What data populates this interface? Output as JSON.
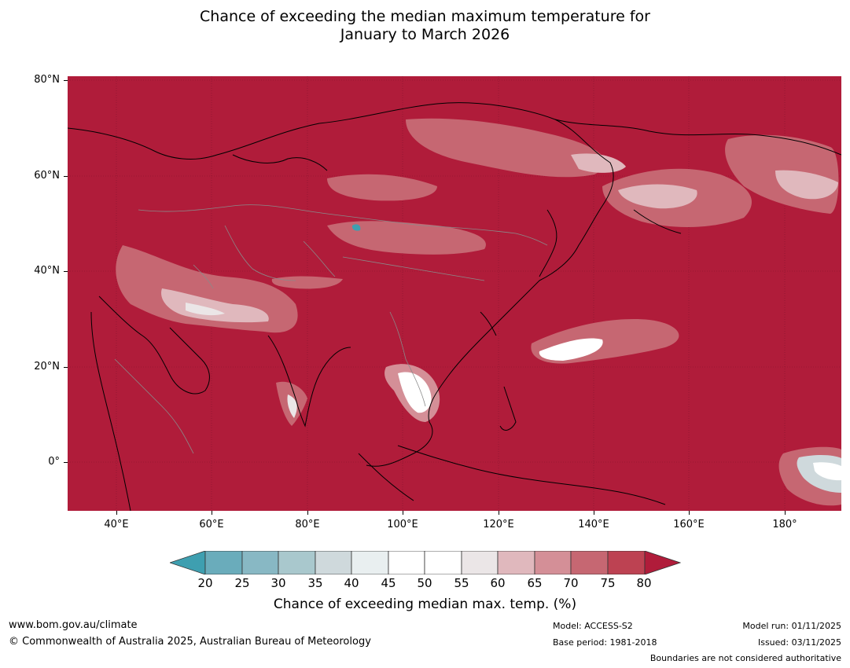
{
  "title_line1": "Chance of exceeding the median maximum temperature for",
  "title_line2": "January to March 2026",
  "lat_labels": [
    "80°N",
    "60°N",
    "40°N",
    "20°N",
    "0°"
  ],
  "lon_labels": [
    "40°E",
    "60°E",
    "80°E",
    "100°E",
    "120°E",
    "140°E",
    "160°E",
    "180°"
  ],
  "colors": {
    "below20": "#3e9fb0",
    "c20_25": "#6aacbb",
    "c25_30": "#88b8c4",
    "c30_35": "#a9c8cd",
    "c35_40": "#cfd9dc",
    "c40_45": "#e9eff0",
    "c45_50": "#ffffff",
    "c50_55": "#ffffff",
    "c55_60": "#ebe6e7",
    "c60_65": "#e0b8bd",
    "c65_70": "#d48f97",
    "c70_75": "#c66772",
    "c75_80": "#bd4252",
    "above80": "#b01c3a"
  },
  "colorbar": {
    "ticks": [
      "20",
      "25",
      "30",
      "35",
      "40",
      "45",
      "50",
      "55",
      "60",
      "65",
      "70",
      "75",
      "80"
    ],
    "title": "Chance of exceeding median max. temp. (%)"
  },
  "footer": {
    "website": "www.bom.gov.au/climate",
    "copyright": "© Commonwealth of Australia 2025, Australian Bureau of Meteorology",
    "model": "Model: ACCESS-S2",
    "base_period": "Base period: 1981-2018",
    "model_run": "Model run: 01/11/2025",
    "issued": "Issued: 03/11/2025",
    "disclaimer": "Boundaries are not considered authoritative"
  }
}
